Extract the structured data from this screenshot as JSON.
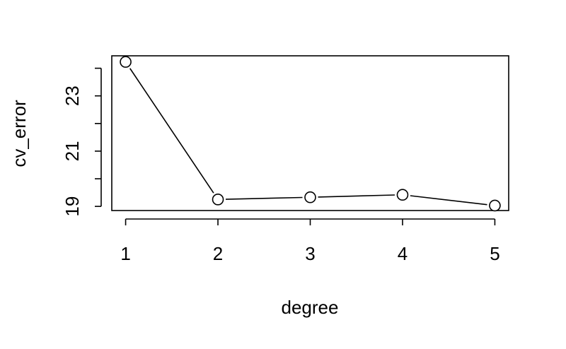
{
  "chart_data": {
    "type": "line",
    "xlabel": "degree",
    "ylabel": "cv_error",
    "x": [
      1,
      2,
      3,
      4,
      5
    ],
    "y": [
      24.23,
      19.25,
      19.33,
      19.42,
      19.03
    ],
    "xlim": [
      0.85,
      5.15
    ],
    "ylim": [
      18.85,
      24.45
    ],
    "xticks": [
      1,
      2,
      3,
      4,
      5
    ],
    "yticks": [
      19,
      20,
      21,
      22,
      23,
      24
    ],
    "ytick_labels": [
      "19",
      "",
      "21",
      "",
      "23",
      ""
    ],
    "markers": "open-circle",
    "grid": false,
    "box": true
  }
}
